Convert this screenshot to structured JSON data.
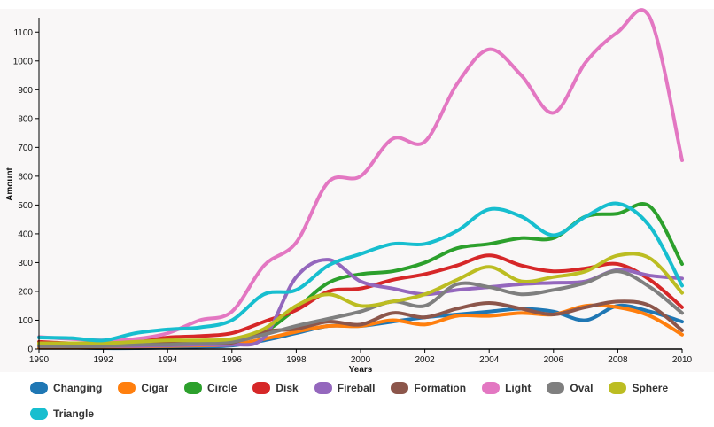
{
  "chart_data": {
    "type": "line",
    "title": "",
    "xlabel": "Years",
    "ylabel": "Amount",
    "xlim": [
      1990,
      2010
    ],
    "ylim": [
      0,
      1150
    ],
    "xticks": [
      "1990",
      "1992",
      "1994",
      "1996",
      "1998",
      "2000",
      "2002",
      "2004",
      "2006",
      "2008",
      "2010"
    ],
    "yticks": [
      "0",
      "100",
      "200",
      "300",
      "400",
      "500",
      "600",
      "700",
      "800",
      "900",
      "1000",
      "1100"
    ],
    "x": [
      1990,
      1991,
      1992,
      1993,
      1994,
      1995,
      1996,
      1997,
      1998,
      1999,
      2000,
      2001,
      2002,
      2003,
      2004,
      2005,
      2006,
      2007,
      2008,
      2009,
      2010
    ],
    "grid": false,
    "legend": "bottom",
    "series": [
      {
        "name": "Changing",
        "color": "#1f77b4",
        "values": [
          5,
          5,
          3,
          3,
          5,
          8,
          12,
          30,
          55,
          80,
          80,
          95,
          110,
          120,
          130,
          140,
          130,
          100,
          150,
          130,
          95
        ]
      },
      {
        "name": "Cigar",
        "color": "#ff7f0e",
        "values": [
          5,
          5,
          5,
          8,
          10,
          12,
          15,
          35,
          60,
          80,
          80,
          100,
          85,
          115,
          115,
          125,
          120,
          150,
          145,
          115,
          50
        ]
      },
      {
        "name": "Circle",
        "color": "#2ca02c",
        "values": [
          15,
          10,
          12,
          18,
          25,
          25,
          30,
          60,
          140,
          230,
          260,
          270,
          300,
          350,
          365,
          385,
          385,
          460,
          470,
          495,
          295
        ]
      },
      {
        "name": "Disk",
        "color": "#d62728",
        "values": [
          25,
          20,
          18,
          25,
          40,
          45,
          55,
          95,
          135,
          200,
          210,
          240,
          260,
          290,
          325,
          290,
          270,
          280,
          295,
          240,
          145
        ]
      },
      {
        "name": "Fireball",
        "color": "#9467bd",
        "values": [
          10,
          10,
          10,
          10,
          12,
          15,
          15,
          40,
          250,
          310,
          235,
          210,
          190,
          205,
          215,
          225,
          230,
          235,
          275,
          255,
          245
        ]
      },
      {
        "name": "Formation",
        "color": "#8c564b",
        "values": [
          20,
          20,
          20,
          22,
          22,
          22,
          22,
          60,
          70,
          95,
          85,
          125,
          110,
          140,
          160,
          140,
          120,
          145,
          165,
          150,
          65
        ]
      },
      {
        "name": "Light",
        "color": "#e377c2",
        "values": [
          42,
          35,
          30,
          35,
          55,
          100,
          130,
          290,
          370,
          580,
          600,
          730,
          720,
          920,
          1040,
          950,
          820,
          995,
          1100,
          1150,
          655
        ]
      },
      {
        "name": "Oval",
        "color": "#7f7f7f",
        "values": [
          10,
          10,
          10,
          15,
          15,
          20,
          25,
          50,
          80,
          105,
          130,
          165,
          150,
          225,
          215,
          190,
          205,
          230,
          270,
          215,
          125
        ]
      },
      {
        "name": "Sphere",
        "color": "#bcbd22",
        "values": [
          20,
          20,
          20,
          25,
          30,
          30,
          35,
          70,
          150,
          190,
          150,
          165,
          190,
          240,
          285,
          235,
          250,
          270,
          325,
          315,
          195
        ]
      },
      {
        "name": "Triangle",
        "color": "#17becf",
        "values": [
          40,
          38,
          30,
          55,
          68,
          75,
          100,
          190,
          205,
          290,
          330,
          365,
          365,
          410,
          485,
          460,
          395,
          460,
          505,
          425,
          220
        ]
      }
    ]
  }
}
